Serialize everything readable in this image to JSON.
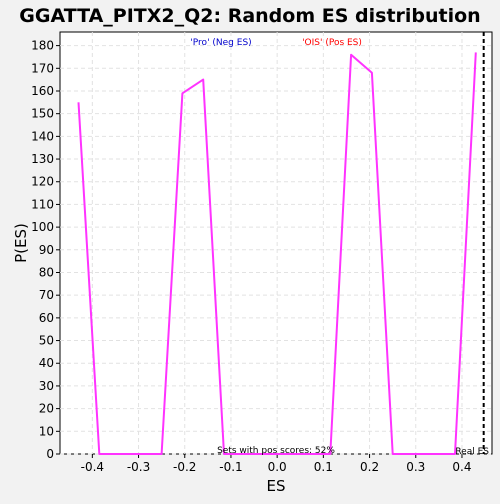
{
  "chart_data": {
    "type": "line",
    "title": "GGATTA_PITX2_Q2: Random ES distribution",
    "xlabel": "ES",
    "ylabel": "P(ES)",
    "xlim": [
      -0.47,
      0.465
    ],
    "ylim": [
      0,
      186
    ],
    "x_ticks": [
      -0.4,
      -0.3,
      -0.2,
      -0.1,
      0.0,
      0.1,
      0.2,
      0.3,
      0.4
    ],
    "x_tick_labels": [
      "-0.4",
      "-0.3",
      "-0.2",
      "-0.1",
      "0.0",
      "0.1",
      "0.2",
      "0.3",
      "0.4"
    ],
    "y_ticks": [
      0,
      10,
      20,
      30,
      40,
      50,
      60,
      70,
      80,
      90,
      100,
      110,
      120,
      130,
      140,
      150,
      160,
      170,
      180
    ],
    "grid": true,
    "series": [
      {
        "color": "#ff33ff",
        "x": [
          -0.43,
          -0.385,
          -0.25,
          -0.205,
          -0.16,
          -0.115,
          0.115,
          0.16,
          0.205,
          0.25,
          0.385,
          0.43
        ],
        "y": [
          155,
          0,
          0,
          159,
          165,
          0,
          0,
          176,
          168,
          0,
          0,
          177
        ]
      }
    ],
    "real_es": 0.447,
    "annotations": {
      "neg": {
        "text": "'Pro' (Neg ES)",
        "color": "#0000cc"
      },
      "pos": {
        "text": "'OIS' (Pos ES)",
        "color": "#ff0000"
      },
      "pos_scores": "Sets with pos scores: 52%",
      "real_es_label": "Real ES"
    }
  }
}
